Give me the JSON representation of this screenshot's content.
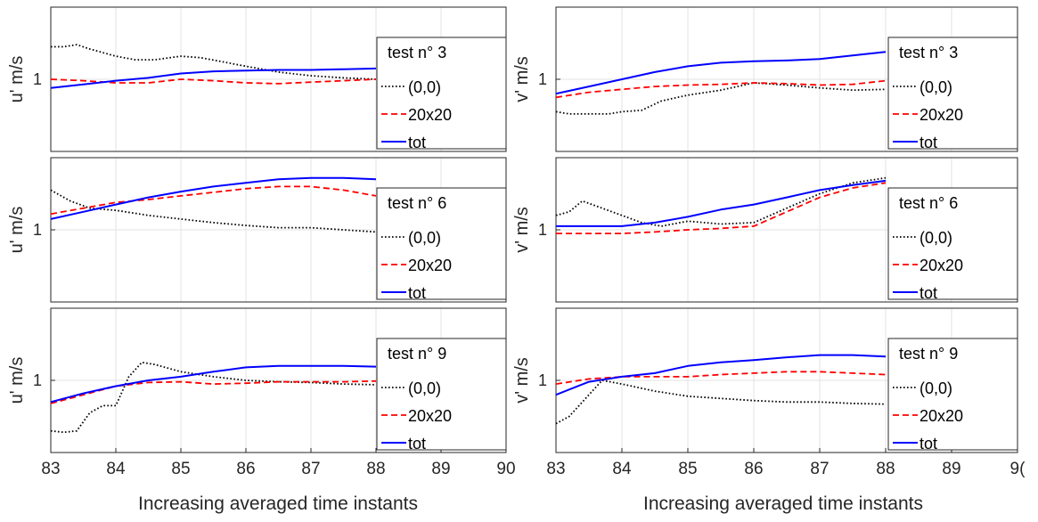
{
  "chart_data": [
    {
      "type": "line",
      "panel": "left-1",
      "ylabel": "u' m/s",
      "xlim": [
        83,
        90
      ],
      "ylim": [
        0,
        2
      ],
      "yticks": [
        1
      ],
      "legend": {
        "title": "test n° 3",
        "placement": "right"
      },
      "series": [
        {
          "name": "(0,0)",
          "color": "#000000",
          "style": "dotted",
          "x": [
            83,
            83.2,
            83.4,
            83.6,
            84,
            84.3,
            84.6,
            85,
            85.3,
            85.6,
            86,
            86.5,
            87,
            87.5,
            88
          ],
          "y": [
            1.45,
            1.45,
            1.48,
            1.42,
            1.32,
            1.27,
            1.27,
            1.32,
            1.3,
            1.25,
            1.18,
            1.1,
            1.05,
            1.02,
            1.0
          ]
        },
        {
          "name": "20x20",
          "color": "#ff0000",
          "style": "dashed",
          "x": [
            83,
            83.5,
            84,
            84.5,
            85,
            85.5,
            86,
            86.5,
            87,
            87.5,
            88
          ],
          "y": [
            1.0,
            0.98,
            0.95,
            0.95,
            1.0,
            0.98,
            0.95,
            0.94,
            0.96,
            0.98,
            1.0
          ]
        },
        {
          "name": "tot",
          "color": "#0000ff",
          "style": "solid",
          "x": [
            83,
            83.5,
            84,
            84.5,
            85,
            85.5,
            86,
            86.5,
            87,
            87.5,
            88
          ],
          "y": [
            0.88,
            0.93,
            0.98,
            1.02,
            1.08,
            1.11,
            1.12,
            1.13,
            1.13,
            1.14,
            1.15
          ]
        }
      ]
    },
    {
      "type": "line",
      "panel": "left-2",
      "ylabel": "u' m/s",
      "xlim": [
        83,
        90
      ],
      "ylim": [
        0,
        2
      ],
      "yticks": [
        1
      ],
      "legend": {
        "title": "test n° 6",
        "placement": "right"
      },
      "series": [
        {
          "name": "(0,0)",
          "color": "#000000",
          "style": "dotted",
          "x": [
            83,
            83.3,
            83.6,
            84,
            84.5,
            85,
            85.5,
            86,
            86.5,
            87,
            87.5,
            88
          ],
          "y": [
            1.55,
            1.4,
            1.3,
            1.27,
            1.2,
            1.15,
            1.1,
            1.06,
            1.03,
            1.03,
            1.0,
            0.97
          ]
        },
        {
          "name": "20x20",
          "color": "#ff0000",
          "style": "dashed",
          "x": [
            83,
            83.5,
            84,
            84.5,
            85,
            85.5,
            86,
            86.5,
            87,
            87.5,
            88
          ],
          "y": [
            1.22,
            1.3,
            1.38,
            1.42,
            1.47,
            1.52,
            1.57,
            1.6,
            1.6,
            1.55,
            1.47
          ]
        },
        {
          "name": "tot",
          "color": "#0000ff",
          "style": "solid",
          "x": [
            83,
            83.5,
            84,
            84.5,
            85,
            85.5,
            86,
            86.5,
            87,
            87.5,
            88
          ],
          "y": [
            1.15,
            1.25,
            1.35,
            1.45,
            1.53,
            1.6,
            1.65,
            1.7,
            1.72,
            1.72,
            1.7
          ]
        }
      ]
    },
    {
      "type": "line",
      "panel": "left-3",
      "ylabel": "u' m/s",
      "xlim": [
        83,
        90
      ],
      "ylim": [
        0,
        2
      ],
      "yticks": [
        1
      ],
      "legend": {
        "title": "test n° 9",
        "placement": "right"
      },
      "series": [
        {
          "name": "(0,0)",
          "color": "#000000",
          "style": "dotted",
          "x": [
            83,
            83.2,
            83.4,
            83.6,
            83.8,
            84,
            84.2,
            84.4,
            84.6,
            85,
            85.5,
            86,
            86.5,
            87,
            87.5,
            88
          ],
          "y": [
            0.3,
            0.28,
            0.3,
            0.55,
            0.65,
            0.65,
            1.05,
            1.25,
            1.22,
            1.12,
            1.05,
            1.0,
            0.98,
            0.97,
            0.95,
            0.94
          ]
        },
        {
          "name": "20x20",
          "color": "#ff0000",
          "style": "dashed",
          "x": [
            83,
            83.5,
            84,
            84.5,
            85,
            85.5,
            86,
            86.5,
            87,
            87.5,
            88
          ],
          "y": [
            0.68,
            0.8,
            0.92,
            0.97,
            0.98,
            0.95,
            0.96,
            0.98,
            0.98,
            0.98,
            0.99
          ]
        },
        {
          "name": "tot",
          "color": "#0000ff",
          "style": "solid",
          "x": [
            83,
            83.5,
            84,
            84.5,
            85,
            85.5,
            86,
            86.5,
            87,
            87.5,
            88
          ],
          "y": [
            0.7,
            0.82,
            0.92,
            1.0,
            1.05,
            1.12,
            1.18,
            1.2,
            1.2,
            1.2,
            1.19
          ]
        }
      ]
    },
    {
      "type": "line",
      "panel": "right-1",
      "ylabel": "v' m/s",
      "xlim": [
        83,
        90
      ],
      "ylim": [
        0,
        2
      ],
      "yticks": [
        1
      ],
      "legend": {
        "title": "test n° 3",
        "placement": "right"
      },
      "series": [
        {
          "name": "(0,0)",
          "color": "#000000",
          "style": "dotted",
          "x": [
            83,
            83.2,
            83.5,
            83.8,
            84,
            84.3,
            84.6,
            85,
            85.5,
            86,
            86.5,
            87,
            87.5,
            88
          ],
          "y": [
            0.55,
            0.52,
            0.52,
            0.52,
            0.55,
            0.57,
            0.7,
            0.78,
            0.85,
            0.95,
            0.92,
            0.88,
            0.85,
            0.86
          ]
        },
        {
          "name": "20x20",
          "color": "#ff0000",
          "style": "dashed",
          "x": [
            83,
            83.5,
            84,
            84.5,
            85,
            85.5,
            86,
            86.5,
            87,
            87.5,
            88
          ],
          "y": [
            0.75,
            0.82,
            0.86,
            0.9,
            0.92,
            0.93,
            0.95,
            0.94,
            0.92,
            0.93,
            0.98
          ]
        },
        {
          "name": "tot",
          "color": "#0000ff",
          "style": "solid",
          "x": [
            83,
            83.5,
            84,
            84.5,
            85,
            85.5,
            86,
            86.5,
            87,
            87.5,
            88
          ],
          "y": [
            0.8,
            0.9,
            1.0,
            1.1,
            1.18,
            1.23,
            1.25,
            1.26,
            1.28,
            1.33,
            1.38
          ]
        }
      ]
    },
    {
      "type": "line",
      "panel": "right-2",
      "ylabel": "v' m/s",
      "xlim": [
        83,
        90
      ],
      "ylim": [
        0,
        2
      ],
      "yticks": [
        1
      ],
      "legend": {
        "title": "test n° 6",
        "placement": "right"
      },
      "series": [
        {
          "name": "(0,0)",
          "color": "#000000",
          "style": "dotted",
          "x": [
            83,
            83.2,
            83.4,
            83.7,
            84,
            84.3,
            84.6,
            85,
            85.5,
            86,
            86.5,
            87,
            87.5,
            88
          ],
          "y": [
            1.2,
            1.25,
            1.4,
            1.3,
            1.2,
            1.1,
            1.05,
            1.12,
            1.08,
            1.1,
            1.3,
            1.5,
            1.65,
            1.72
          ]
        },
        {
          "name": "20x20",
          "color": "#ff0000",
          "style": "dashed",
          "x": [
            83,
            83.5,
            84,
            84.5,
            85,
            85.5,
            86,
            86.5,
            87,
            87.5,
            88
          ],
          "y": [
            0.95,
            0.95,
            0.95,
            0.97,
            1.0,
            1.02,
            1.05,
            1.25,
            1.45,
            1.58,
            1.65
          ]
        },
        {
          "name": "tot",
          "color": "#0000ff",
          "style": "solid",
          "x": [
            83,
            83.5,
            84,
            84.5,
            85,
            85.5,
            86,
            86.5,
            87,
            87.5,
            88
          ],
          "y": [
            1.05,
            1.05,
            1.05,
            1.1,
            1.18,
            1.28,
            1.35,
            1.45,
            1.55,
            1.62,
            1.68
          ]
        }
      ]
    },
    {
      "type": "line",
      "panel": "right-3",
      "ylabel": "v' m/s",
      "xlim": [
        83,
        90
      ],
      "ylim": [
        0,
        2
      ],
      "yticks": [
        1
      ],
      "legend": {
        "title": "test n° 9",
        "placement": "right"
      },
      "series": [
        {
          "name": "(0,0)",
          "color": "#000000",
          "style": "dotted",
          "x": [
            83,
            83.2,
            83.5,
            83.7,
            84,
            84.5,
            85,
            85.5,
            86,
            86.5,
            87,
            87.5,
            88
          ],
          "y": [
            0.4,
            0.5,
            0.8,
            1.0,
            0.95,
            0.85,
            0.78,
            0.75,
            0.72,
            0.7,
            0.7,
            0.68,
            0.67
          ]
        },
        {
          "name": "20x20",
          "color": "#ff0000",
          "style": "dashed",
          "x": [
            83,
            83.5,
            84,
            84.5,
            85,
            85.5,
            86,
            86.5,
            87,
            87.5,
            88
          ],
          "y": [
            0.95,
            1.02,
            1.05,
            1.05,
            1.05,
            1.08,
            1.1,
            1.12,
            1.12,
            1.1,
            1.08
          ]
        },
        {
          "name": "tot",
          "color": "#0000ff",
          "style": "solid",
          "x": [
            83,
            83.5,
            84,
            84.5,
            85,
            85.5,
            86,
            86.5,
            87,
            87.5,
            88
          ],
          "y": [
            0.8,
            0.98,
            1.05,
            1.1,
            1.2,
            1.25,
            1.28,
            1.32,
            1.35,
            1.35,
            1.33
          ]
        }
      ]
    }
  ],
  "figure": {
    "xticks_left": [
      "83",
      "84",
      "85",
      "86",
      "87",
      "88",
      "89",
      "90"
    ],
    "xticks_right": [
      "83",
      "84",
      "85",
      "86",
      "87",
      "88",
      "89",
      "9("
    ],
    "xlabel_left": "Increasing averaged time instants",
    "xlabel_right": "Increasing averaged time instants"
  }
}
